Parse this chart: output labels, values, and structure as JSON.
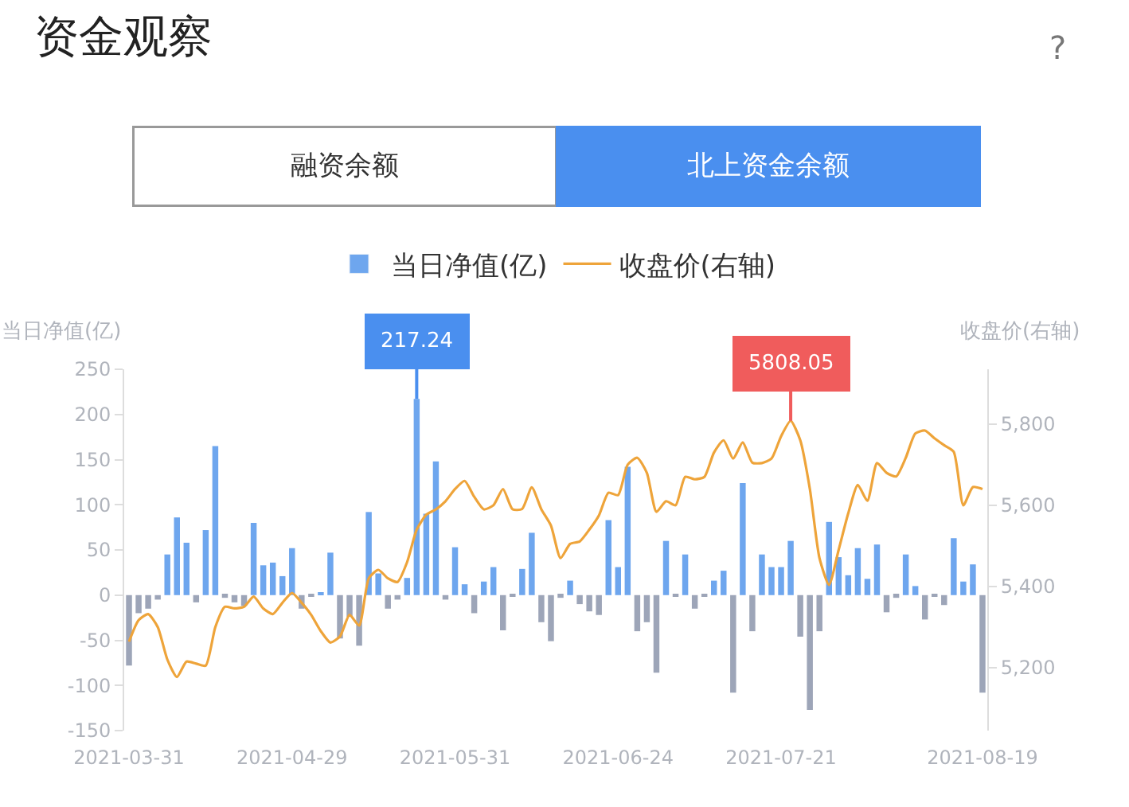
{
  "chart_data": {
    "type": "bar",
    "title": "资金观察",
    "ylabel": "当日净值(亿)",
    "y2label": "收盘价(右轴)",
    "annotations": [
      "融资余额",
      "北上资金余额",
      "?"
    ],
    "categories": [
      "2021-03-31",
      null,
      null,
      null,
      null,
      null,
      null,
      null,
      null,
      null,
      null,
      null,
      null,
      null,
      null,
      null,
      null,
      "2021-04-29",
      null,
      null,
      null,
      null,
      null,
      null,
      null,
      null,
      null,
      null,
      null,
      null,
      null,
      null,
      null,
      null,
      "2021-05-31",
      null,
      null,
      null,
      null,
      null,
      null,
      null,
      null,
      null,
      null,
      null,
      null,
      null,
      null,
      null,
      null,
      "2021-06-24",
      null,
      null,
      null,
      null,
      null,
      null,
      null,
      null,
      null,
      null,
      null,
      null,
      null,
      null,
      null,
      null,
      "2021-07-21",
      null,
      null,
      null,
      null,
      null,
      null,
      null,
      null,
      null,
      null,
      null,
      null,
      null,
      null,
      null,
      null,
      null,
      null,
      null,
      null,
      "2021-08-19"
    ],
    "series": [
      {
        "name": "当日净值(亿)",
        "color": "#6ea6ee",
        "values": [
          -78,
          -20,
          -15,
          -5,
          45,
          86,
          58,
          -8,
          72,
          165,
          -3,
          -8,
          -12,
          80,
          33,
          36,
          21,
          52,
          -15,
          -2,
          3,
          47,
          -48,
          -24,
          -56,
          92,
          24,
          -15,
          -5,
          19,
          217.24,
          90,
          148,
          -5,
          53,
          12,
          -20,
          15,
          31,
          -39,
          -2,
          29,
          69,
          -30,
          -51,
          -3,
          16,
          -10,
          -18,
          -22,
          83,
          31,
          142,
          -40,
          -30,
          -86,
          60,
          -2,
          45,
          -15,
          -2,
          16,
          27,
          -108,
          124,
          -40,
          45,
          31,
          31,
          60,
          -46,
          -127,
          -40,
          81,
          42,
          22,
          52,
          18,
          56,
          -19,
          -3,
          45,
          10,
          -27,
          -2,
          -11,
          63,
          15,
          34,
          -108
        ],
        "colors": [
          "#9da5b8",
          "#9da5b8",
          "#9da5b8",
          "#9da5b8",
          "#6ea6ee",
          "#6ea6ee",
          "#6ea6ee",
          "#9da5b8",
          "#6ea6ee",
          "#6ea6ee",
          "#9da5b8",
          "#9da5b8",
          "#9da5b8",
          "#6ea6ee",
          "#6ea6ee",
          "#6ea6ee",
          "#6ea6ee",
          "#6ea6ee",
          "#9da5b8",
          "#9da5b8",
          "#6ea6ee",
          "#6ea6ee",
          "#9da5b8",
          "#9da5b8",
          "#9da5b8",
          "#6ea6ee",
          "#6ea6ee",
          "#9da5b8",
          "#9da5b8",
          "#6ea6ee",
          "#6ea6ee",
          "#6ea6ee",
          "#6ea6ee",
          "#9da5b8",
          "#6ea6ee",
          "#6ea6ee",
          "#9da5b8",
          "#6ea6ee",
          "#6ea6ee",
          "#9da5b8",
          "#9da5b8",
          "#6ea6ee",
          "#6ea6ee",
          "#9da5b8",
          "#9da5b8",
          "#9da5b8",
          "#6ea6ee",
          "#9da5b8",
          "#9da5b8",
          "#9da5b8",
          "#6ea6ee",
          "#6ea6ee",
          "#6ea6ee",
          "#9da5b8",
          "#9da5b8",
          "#9da5b8",
          "#6ea6ee",
          "#9da5b8",
          "#6ea6ee",
          "#9da5b8",
          "#9da5b8",
          "#6ea6ee",
          "#6ea6ee",
          "#9da5b8",
          "#6ea6ee",
          "#9da5b8",
          "#6ea6ee",
          "#6ea6ee",
          "#6ea6ee",
          "#6ea6ee",
          "#9da5b8",
          "#9da5b8",
          "#9da5b8",
          "#6ea6ee",
          "#6ea6ee",
          "#6ea6ee",
          "#6ea6ee",
          "#6ea6ee",
          "#6ea6ee",
          "#9da5b8",
          "#9da5b8",
          "#6ea6ee",
          "#6ea6ee",
          "#9da5b8",
          "#9da5b8",
          "#9da5b8",
          "#6ea6ee",
          "#6ea6ee",
          "#6ea6ee",
          "#9da5b8"
        ],
        "value_labels": [
          null,
          null,
          null,
          null,
          null,
          null,
          null,
          null,
          null,
          null,
          null,
          null,
          null,
          null,
          null,
          null,
          null,
          null,
          null,
          null,
          null,
          null,
          null,
          null,
          null,
          null,
          null,
          null,
          null,
          null,
          "217.24",
          null,
          null,
          null,
          null,
          null,
          null,
          null,
          null,
          null,
          null,
          null,
          null,
          null,
          null,
          null,
          null,
          null,
          null,
          null,
          null,
          null,
          null,
          null,
          null,
          null,
          null,
          null,
          null,
          null,
          null,
          null,
          null,
          null,
          null,
          null,
          null,
          null,
          null,
          null,
          null,
          null,
          null,
          null,
          null,
          null,
          null,
          null,
          null,
          null,
          null,
          null,
          null,
          null,
          null,
          null,
          null,
          null,
          null,
          null
        ]
      },
      {
        "name": "收盘价(右轴)",
        "type": "line",
        "axis": "y2",
        "color": "#eea43a",
        "values": [
          5264,
          5317,
          5332,
          5300,
          5220,
          5177,
          5215,
          5210,
          5205,
          5300,
          5350,
          5346,
          5350,
          5375,
          5346,
          5332,
          5360,
          5384,
          5360,
          5330,
          5290,
          5262,
          5277,
          5330,
          5304,
          5420,
          5441,
          5420,
          5411,
          5460,
          5540,
          5577,
          5590,
          5610,
          5640,
          5660,
          5621,
          5590,
          5600,
          5640,
          5590,
          5591,
          5644,
          5590,
          5550,
          5470,
          5505,
          5511,
          5540,
          5575,
          5631,
          5625,
          5700,
          5717,
          5680,
          5584,
          5610,
          5600,
          5670,
          5664,
          5670,
          5730,
          5760,
          5715,
          5755,
          5705,
          5704,
          5715,
          5770,
          5808.05,
          5760,
          5640,
          5470,
          5404,
          5490,
          5580,
          5650,
          5611,
          5704,
          5680,
          5671,
          5717,
          5777,
          5784,
          5765,
          5748,
          5732,
          5600,
          5645,
          5640
        ],
        "value_labels": [
          null,
          null,
          null,
          null,
          null,
          null,
          null,
          null,
          null,
          null,
          null,
          null,
          null,
          null,
          null,
          null,
          null,
          null,
          null,
          null,
          null,
          null,
          null,
          null,
          null,
          null,
          null,
          null,
          null,
          null,
          null,
          null,
          null,
          null,
          null,
          null,
          null,
          null,
          null,
          null,
          null,
          null,
          null,
          null,
          null,
          null,
          null,
          null,
          null,
          null,
          null,
          null,
          null,
          null,
          null,
          null,
          null,
          null,
          null,
          null,
          null,
          null,
          null,
          null,
          null,
          null,
          null,
          null,
          null,
          "5808.05",
          null,
          null,
          null,
          null,
          null,
          null,
          null,
          null,
          null,
          null,
          null,
          null,
          null,
          null,
          null,
          null,
          null,
          null,
          null,
          null
        ]
      }
    ],
    "ylim": [
      -150,
      250
    ],
    "yticks": [
      -150,
      -100,
      -50,
      0,
      50,
      100,
      150,
      200,
      250
    ],
    "y2lim": [
      5045,
      5935
    ],
    "y2ticks": [
      {
        "value": 5200,
        "label": "5,200"
      },
      {
        "value": 5400,
        "label": "5,400"
      },
      {
        "value": 5600,
        "label": "5,600"
      },
      {
        "value": 5800,
        "label": "5,800"
      }
    ],
    "legend": "top"
  }
}
